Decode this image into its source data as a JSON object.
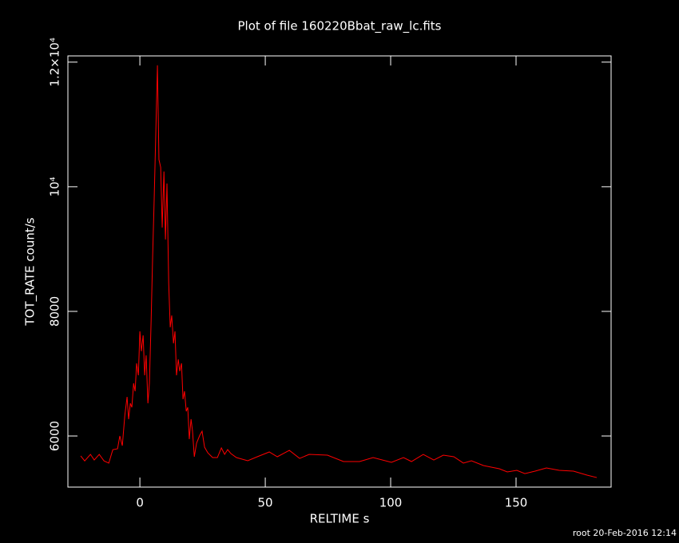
{
  "chart_data": {
    "type": "line",
    "title": "Plot of file 160220Bbat_raw_lc.fits",
    "x_label": "RELTIME  s",
    "y_label": "TOT_RATE  count/s",
    "footer": "root 20-Feb-2016 12:14",
    "xlim": [
      -28.7,
      187.9
    ],
    "ylim": [
      5180,
      12100
    ],
    "xticks": [
      0,
      50,
      100,
      150
    ],
    "yticks": [
      6000,
      8000,
      {
        "value": 10000,
        "label": "10⁴"
      },
      {
        "value": 12000,
        "label": "1.2×10⁴"
      }
    ],
    "x": [
      -23.6,
      -22,
      -19.7,
      -18.2,
      -16.2,
      -14.3,
      -12.4,
      -10.8,
      -8.9,
      -8,
      -7,
      -6,
      -5.1,
      -4.5,
      -3.8,
      -3.2,
      -2.5,
      -1.9,
      -1.3,
      -0.6,
      0,
      0.6,
      1.3,
      1.9,
      2.5,
      3.2,
      3.8,
      4.5,
      5.1,
      5.7,
      6.4,
      7,
      7.6,
      8.3,
      8.9,
      9.6,
      10.2,
      10.8,
      11.5,
      12.1,
      12.7,
      13.4,
      14,
      14.6,
      15.3,
      15.9,
      16.6,
      17.2,
      17.8,
      18.5,
      19.1,
      19.7,
      20.4,
      21,
      21.7,
      22.6,
      23.9,
      24.8,
      25.8,
      27.1,
      29,
      30.9,
      32.5,
      33.8,
      35,
      36.3,
      38.5,
      43,
      46.8,
      51.6,
      54.8,
      59.6,
      63.7,
      67.5,
      74.8,
      81.2,
      87.6,
      93,
      100.3,
      105.1,
      108.3,
      113,
      117.2,
      121,
      125.2,
      129,
      132.2,
      137,
      140.1,
      143.3,
      146.5,
      150.3,
      153.5,
      157.6,
      162.1,
      167.2,
      172.9,
      178.3,
      182.2
    ],
    "series": [
      {
        "name": "TOT_RATE",
        "color": "#ff0000",
        "values": [
          5680,
          5600,
          5705,
          5615,
          5705,
          5600,
          5565,
          5780,
          5795,
          6000,
          5845,
          6333,
          6628,
          6270,
          6525,
          6460,
          6846,
          6718,
          7166,
          6975,
          7680,
          7360,
          7615,
          6975,
          7295,
          6525,
          6846,
          7870,
          8897,
          9795,
          10950,
          11950,
          10437,
          10310,
          9345,
          10245,
          9155,
          10053,
          8450,
          7745,
          7935,
          7487,
          7680,
          6975,
          7230,
          7040,
          7166,
          6590,
          6718,
          6397,
          6460,
          5950,
          6270,
          6077,
          5667,
          5885,
          6013,
          6077,
          5820,
          5730,
          5654,
          5654,
          5808,
          5705,
          5782,
          5718,
          5654,
          5603,
          5667,
          5744,
          5667,
          5770,
          5641,
          5705,
          5692,
          5590,
          5590,
          5654,
          5577,
          5654,
          5590,
          5705,
          5615,
          5692,
          5667,
          5565,
          5603,
          5526,
          5500,
          5475,
          5424,
          5449,
          5397,
          5436,
          5487,
          5449,
          5436,
          5372,
          5333
        ]
      }
    ]
  }
}
